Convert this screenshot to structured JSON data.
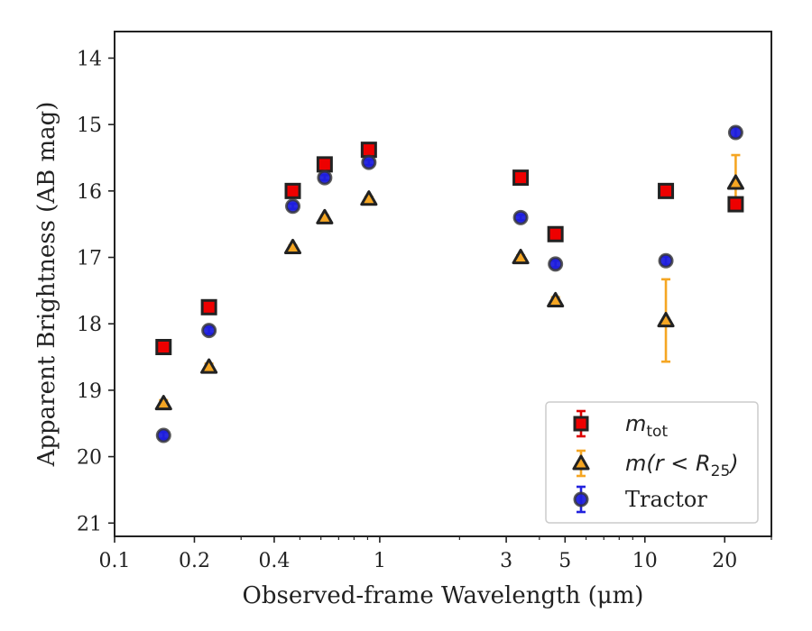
{
  "chart_data": {
    "type": "scatter",
    "xlabel": "Observed-frame Wavelength (μm)",
    "ylabel": "Apparent Brightness (AB mag)",
    "xscale": "log",
    "xlim": [
      0.1,
      30
    ],
    "ylim": [
      21.2,
      13.6
    ],
    "y_inverted": true,
    "x_ticks": [
      0.1,
      0.2,
      0.4,
      1,
      3,
      5,
      10,
      20
    ],
    "x_tick_labels": [
      "0.1",
      "0.2",
      "0.4",
      "1",
      "3",
      "5",
      "10",
      "20"
    ],
    "y_ticks": [
      14,
      15,
      16,
      17,
      18,
      19,
      20,
      21
    ],
    "y_tick_labels": [
      "14",
      "15",
      "16",
      "17",
      "18",
      "19",
      "20",
      "21"
    ],
    "grid": false,
    "legend_position": "bottom-right",
    "series": [
      {
        "name_parts": [
          "m",
          "tot",
          ""
        ],
        "marker": "square",
        "face_color": "#ee0000",
        "edge_color": "#222222",
        "error_color": "#dd0000",
        "x": [
          0.153,
          0.227,
          0.47,
          0.62,
          0.91,
          3.4,
          4.6,
          12,
          22
        ],
        "y": [
          18.35,
          17.75,
          16.0,
          15.6,
          15.38,
          15.8,
          16.65,
          16.0,
          16.2
        ],
        "yerr": [
          0.03,
          0.03,
          0.02,
          0.02,
          0.02,
          0.02,
          0.03,
          0.05,
          0.08
        ]
      },
      {
        "name_parts": [
          "m(r < R",
          "25",
          ")"
        ],
        "marker": "triangle",
        "face_color": "#f5a623",
        "edge_color": "#222222",
        "error_color": "#f5a623",
        "x": [
          0.153,
          0.227,
          0.47,
          0.62,
          0.91,
          3.4,
          4.6,
          12,
          22
        ],
        "y": [
          19.2,
          18.65,
          16.85,
          16.4,
          16.12,
          17.0,
          17.65,
          17.95,
          15.88
        ],
        "yerr": [
          0.05,
          0.05,
          0.03,
          0.03,
          0.03,
          0.03,
          0.05,
          0.62,
          0.42
        ]
      },
      {
        "name": "Tractor",
        "marker": "circle",
        "face_color": "#1f1fdd",
        "edge_color": "#333333",
        "error_color": "#2222dd",
        "x": [
          0.153,
          0.227,
          0.47,
          0.62,
          0.91,
          3.4,
          4.6,
          12,
          22
        ],
        "y": [
          19.68,
          18.1,
          16.23,
          15.8,
          15.57,
          16.4,
          17.1,
          17.05,
          15.12
        ],
        "yerr": [
          0.05,
          0.05,
          0.04,
          0.04,
          0.04,
          0.04,
          0.05,
          0.06,
          0.07
        ]
      }
    ]
  }
}
